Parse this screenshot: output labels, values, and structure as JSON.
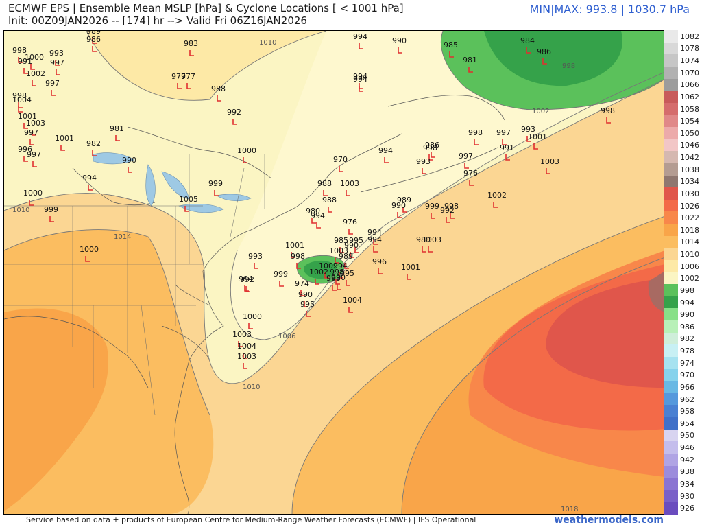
{
  "header": {
    "title": "ECMWF EPS | Ensemble Mean MSLP [hPa] & Cyclone Locations [ < 1001 hPa]",
    "subtitle": "Init: 00Z09JAN2026 -- [174] hr --> Valid Fri 06Z16JAN2026",
    "minmax": "MIN|MAX: 993.8 | 1030.7 hPa"
  },
  "footer": {
    "credit": "Service based on data + products of European Centre for Medium-Range Weather Forecasts (ECMWF) | IFS Operational",
    "brand": "weathermodels.com"
  },
  "colors": {
    "p1002": "#fbf5c3",
    "p1006": "#fde9a6",
    "p1010": "#fbd693",
    "p1014": "#fbbd60",
    "p1018": "#f9a549",
    "p1022": "#f8874a",
    "p1026": "#f36a48",
    "p1030": "#e0564b",
    "p1034": "#a86a62",
    "low_998": "#5bc15b",
    "low_994": "#35a24a",
    "marker": "#e03030"
  },
  "colorbar_labels": [
    "1082",
    "1078",
    "1074",
    "1070",
    "1066",
    "1062",
    "1058",
    "1054",
    "1050",
    "1046",
    "1042",
    "1038",
    "1034",
    "1030",
    "1026",
    "1022",
    "1018",
    "1014",
    "1010",
    "1006",
    "1002",
    "998",
    "994",
    "990",
    "986",
    "982",
    "978",
    "974",
    "970",
    "966",
    "962",
    "958",
    "954",
    "950",
    "946",
    "942",
    "938",
    "934",
    "930",
    "926"
  ],
  "colorbar_colors": [
    "#e9e9e9",
    "#d8d8d8",
    "#c6c6c6",
    "#b1b1b1",
    "#9c9c9c",
    "#c85a5a",
    "#d56c6c",
    "#e08888",
    "#ecaaaa",
    "#f2c6c6",
    "#d5b8b0",
    "#b49c92",
    "#8f7770",
    "#e0564b",
    "#f36a48",
    "#f8874a",
    "#f9a549",
    "#fbbd60",
    "#fbd693",
    "#fde9a6",
    "#fbf5c3",
    "#5bc15b",
    "#35a24a",
    "#88e088",
    "#b8f0b8",
    "#cfeeda",
    "#c8f0f4",
    "#a6e2f0",
    "#86d2ec",
    "#68b8e4",
    "#5598dc",
    "#4a80d2",
    "#4070c8",
    "#d8d4f0",
    "#c4bdec",
    "#b0a4e4",
    "#9c8cdc",
    "#8a74d2",
    "#7a60c8",
    "#6a4cbe"
  ],
  "isobar_labels": [
    "1010",
    "998",
    "1002",
    "1010",
    "1014",
    "1006",
    "1010",
    "1018"
  ],
  "cyclone_labels": [
    "989",
    "986",
    "994",
    "990",
    "985",
    "984",
    "986",
    "998",
    "1000",
    "993",
    "991",
    "997",
    "1002",
    "997",
    "983",
    "977",
    "977",
    "988",
    "992",
    "998",
    "1004",
    "1001",
    "1003",
    "981",
    "997",
    "1001",
    "982",
    "996",
    "997",
    "990",
    "994",
    "1000",
    "999",
    "1005",
    "999",
    "1000",
    "1000",
    "998",
    "994",
    "970",
    "988",
    "1003",
    "988",
    "994",
    "980",
    "994",
    "976",
    "981",
    "998",
    "997",
    "993",
    "991",
    "1001",
    "1003",
    "998",
    "986",
    "993",
    "994",
    "997",
    "976",
    "1002",
    "989",
    "990",
    "999",
    "998",
    "992",
    "994",
    "994",
    "980",
    "1003",
    "1001",
    "998",
    "985",
    "995",
    "990",
    "1003",
    "989",
    "993",
    "1002",
    "994",
    "1002",
    "998",
    "995",
    "999",
    "993",
    "974",
    "990",
    "990",
    "995",
    "1004",
    "996",
    "1001",
    "992",
    "994",
    "1000",
    "1003",
    "1004",
    "1003"
  ]
}
